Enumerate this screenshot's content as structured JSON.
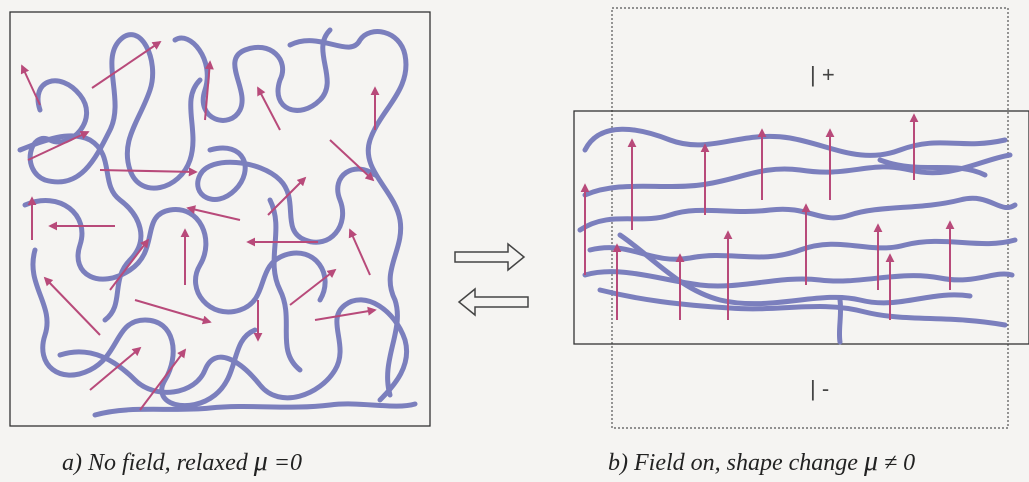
{
  "caption_a": {
    "prefix": "a) No field, relaxed ",
    "symbol": "μ",
    "suffix": " =0"
  },
  "caption_b": {
    "prefix": "b) Field on, shape change ",
    "symbol": "μ",
    "suffix": " ≠ 0"
  },
  "electrode_top_label": "| +",
  "electrode_bottom_label": "| -",
  "colors": {
    "chain": "#7b7fbd",
    "dipole_arrow": "#b84a7a",
    "frame": "#333333",
    "background": "#f5f4f2"
  }
}
